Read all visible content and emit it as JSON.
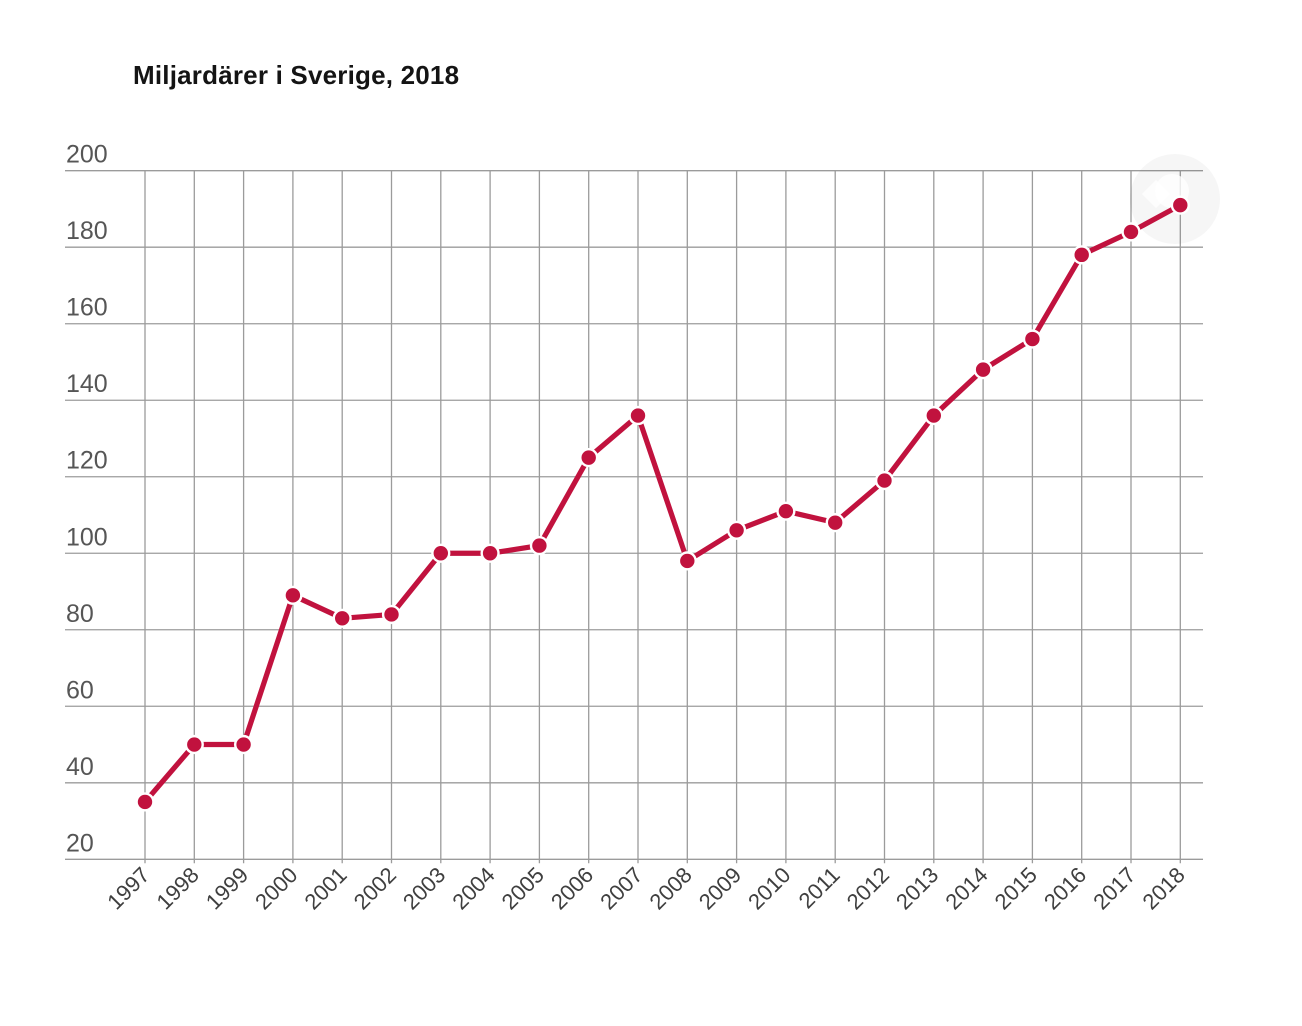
{
  "page": {
    "background_color": "#ffffff"
  },
  "chart_data": {
    "type": "line",
    "title": "Miljardärer i Sverige, 2018",
    "x": [
      1997,
      1998,
      1999,
      2000,
      2001,
      2002,
      2003,
      2004,
      2005,
      2006,
      2007,
      2008,
      2009,
      2010,
      2011,
      2012,
      2013,
      2014,
      2015,
      2016,
      2017,
      2018
    ],
    "series": [
      {
        "name": "Miljardärer i Sverige",
        "values": [
          35,
          50,
          50,
          89,
          83,
          84,
          100,
          100,
          102,
          125,
          136,
          98,
          106,
          111,
          108,
          119,
          136,
          148,
          156,
          178,
          184,
          191
        ]
      }
    ],
    "xlabel": "",
    "ylabel": "",
    "ylim": [
      20,
      200
    ],
    "ytick_step": 20,
    "ytick_labels": [
      "20",
      "40",
      "60",
      "80",
      "100",
      "120",
      "140",
      "160",
      "180",
      "200"
    ],
    "grid": "both",
    "legend_position": "none",
    "colors": {
      "line": "#c1123e",
      "point_fill": "#c1123e",
      "point_stroke": "#ffffff",
      "gridline": "#9b9b9b",
      "ytick_label": "#565656",
      "xtick_label": "#3f3f3f",
      "title": "#141414"
    }
  }
}
